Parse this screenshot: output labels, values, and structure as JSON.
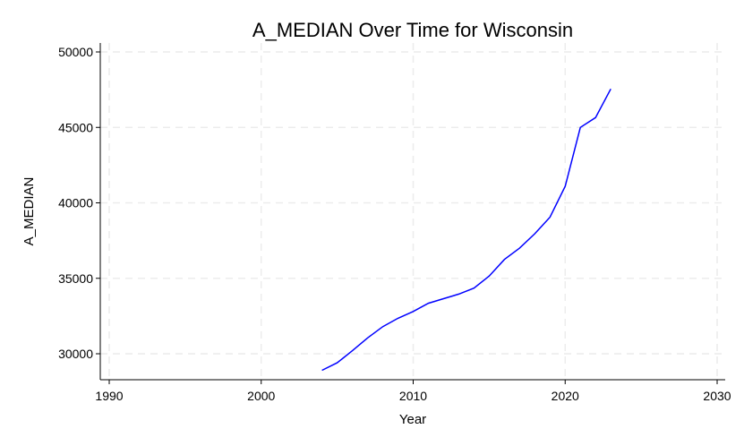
{
  "chart_data": {
    "type": "line",
    "title": "A_MEDIAN Over Time for Wisconsin",
    "xlabel": "Year",
    "ylabel": "A_MEDIAN",
    "xlim": [
      1990,
      2030
    ],
    "ylim": [
      29000,
      50000
    ],
    "xticks": [
      1990,
      2000,
      2010,
      2020,
      2030
    ],
    "yticks": [
      30000,
      35000,
      40000,
      45000,
      50000
    ],
    "grid": true,
    "line_color": "#0000ff",
    "series": [
      {
        "x": [
          2004,
          2005,
          2006,
          2007,
          2008,
          2009,
          2010,
          2011,
          2012,
          2013,
          2014,
          2015,
          2016,
          2017,
          2018,
          2019,
          2020,
          2021,
          2022,
          2023
        ],
        "y": [
          28900,
          29400,
          30200,
          31050,
          31800,
          32350,
          32800,
          33350,
          33650,
          33950,
          34350,
          35150,
          36250,
          37000,
          37950,
          39050,
          41100,
          45000,
          45650,
          47550
        ]
      }
    ]
  }
}
